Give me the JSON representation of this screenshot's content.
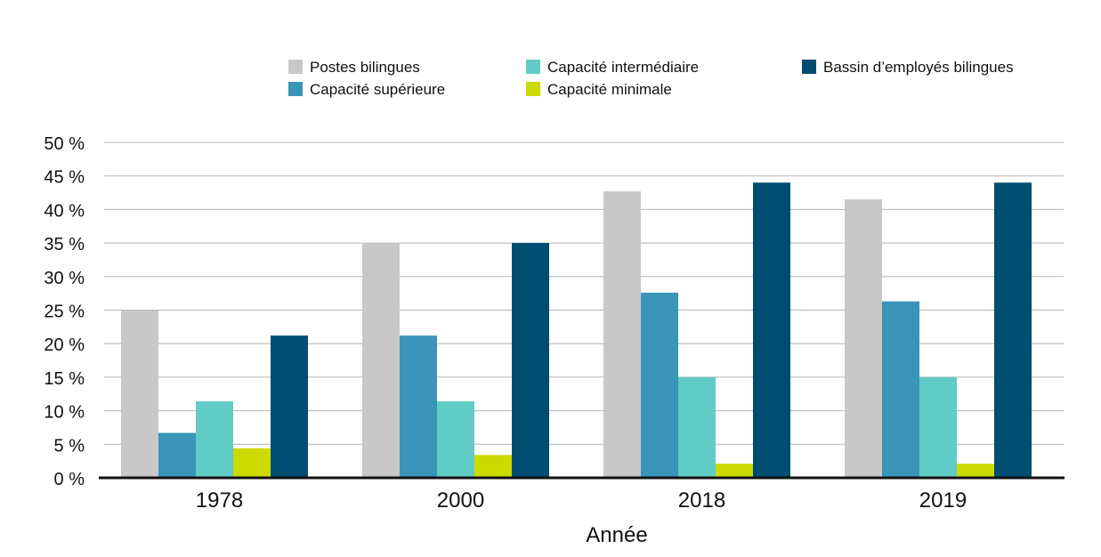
{
  "chart_data": {
    "type": "bar",
    "title": "",
    "xlabel": "Année",
    "ylabel": "",
    "categories": [
      "1978",
      "2000",
      "2018",
      "2019"
    ],
    "ylim": [
      0,
      50
    ],
    "yticks": [
      0,
      5,
      10,
      15,
      20,
      25,
      30,
      35,
      40,
      45,
      50
    ],
    "ytick_labels": [
      "0 %",
      "5 %",
      "10 %",
      "15 %",
      "20 %",
      "25 %",
      "30 %",
      "35 %",
      "40 %",
      "45 %",
      "50 %"
    ],
    "grid": true,
    "legend_position": "top",
    "series": [
      {
        "name": "Postes bilingues",
        "color": "#c8c8c8",
        "values": [
          25,
          35,
          42.7,
          41.5
        ]
      },
      {
        "name": "Capacité supérieure",
        "color": "#3a95b8",
        "values": [
          6.7,
          21.2,
          27.6,
          26.3
        ]
      },
      {
        "name": "Capacité intermédiaire",
        "color": "#61cbc5",
        "values": [
          11.4,
          11.4,
          15.0,
          15.0
        ]
      },
      {
        "name": "Capacité minimale",
        "color": "#cbdb00",
        "values": [
          4.4,
          3.4,
          2.1,
          2.1
        ]
      },
      {
        "name": "Bassin d’employés bilingues",
        "color": "#004d71",
        "values": [
          21.2,
          35,
          44,
          44
        ]
      }
    ]
  }
}
